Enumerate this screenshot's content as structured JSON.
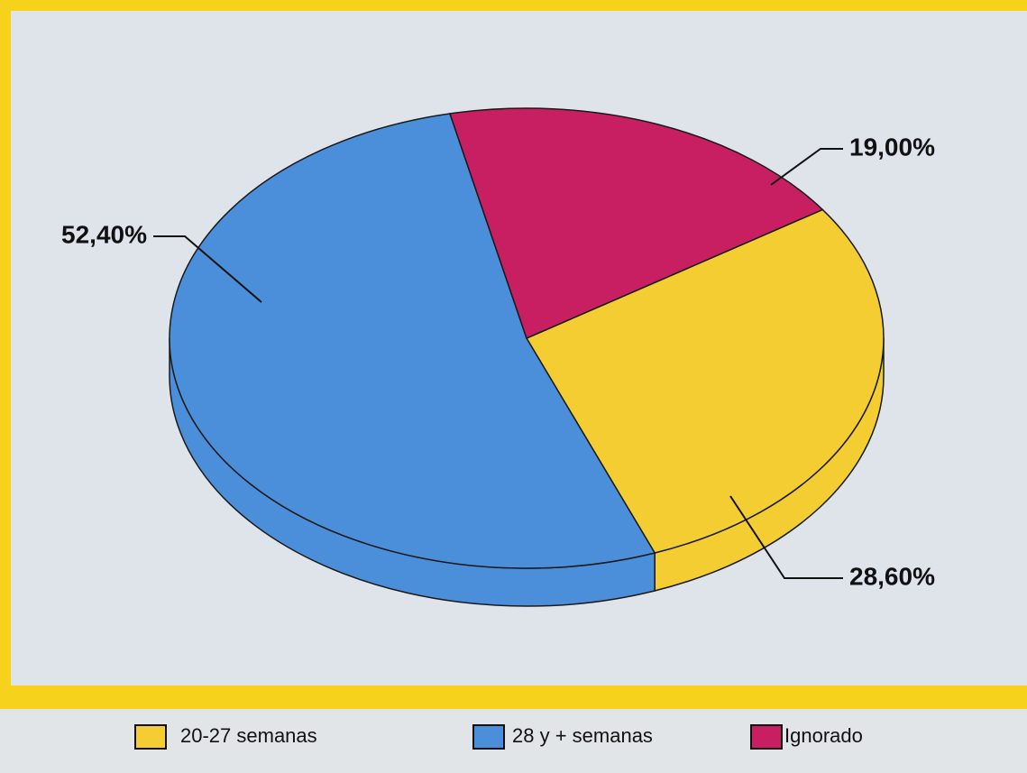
{
  "chart_data": {
    "type": "pie",
    "categories": [
      "20-27 semanas",
      "28 y + semanas",
      "Ignorado"
    ],
    "values": [
      28.6,
      52.4,
      19.0
    ],
    "value_labels": [
      "28,60%",
      "52,40%",
      "19,00%"
    ],
    "colors": [
      "#f4cd32",
      "#4b8fda",
      "#c81f63"
    ]
  }
}
